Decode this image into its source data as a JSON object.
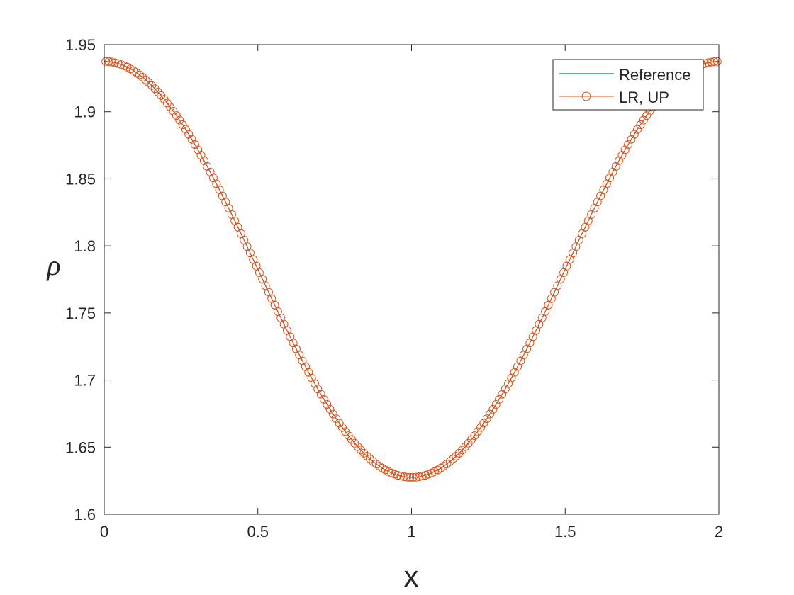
{
  "chart_data": {
    "type": "line",
    "title": "",
    "xlabel": "x",
    "ylabel": "ρ",
    "xlim": [
      0,
      2
    ],
    "ylim": [
      1.6,
      1.95
    ],
    "grid": false,
    "legend_position": "top-right",
    "x_ticks": [
      "0",
      "0.5",
      "1",
      "1.5",
      "2"
    ],
    "y_ticks": [
      "1.6",
      "1.65",
      "1.7",
      "1.75",
      "1.8",
      "1.85",
      "1.9",
      "1.95"
    ],
    "curve": {
      "description_formula": "rho(x) = 1.7825 + 0.155*cos(pi*x)",
      "x_start": 0,
      "x_end": 2
    },
    "series": [
      {
        "name": "Reference",
        "style": "line",
        "color": "#0072BD",
        "num_points": 401
      },
      {
        "name": "LR, UP",
        "style": "line-circle-markers",
        "color": "#D95319",
        "num_points": 200
      }
    ]
  }
}
